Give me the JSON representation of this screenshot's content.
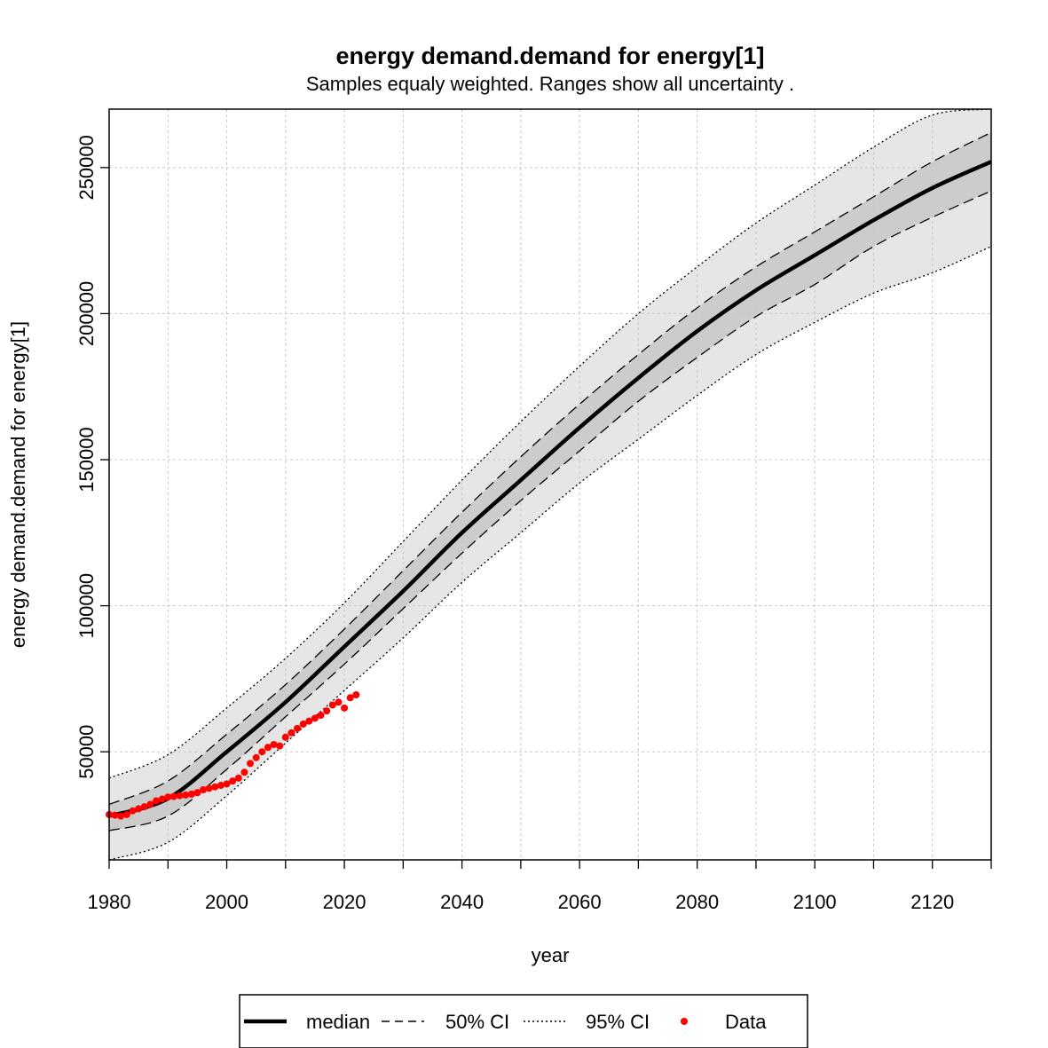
{
  "chart_data": {
    "type": "line",
    "title": "energy demand.demand for energy[1]",
    "subtitle": "Samples equaly weighted. Ranges show  all uncertainty .",
    "xlabel": "year",
    "ylabel": "energy demand.demand for energy[1]",
    "xlim": [
      1980,
      2130
    ],
    "ylim": [
      13000,
      270000
    ],
    "x_ticks": [
      1980,
      2000,
      2020,
      2040,
      2060,
      2080,
      2100,
      2120
    ],
    "x_tick_labels": [
      "1980",
      "2000",
      "2020",
      "2040",
      "2060",
      "2080",
      "2100",
      "2120"
    ],
    "x_minor_ticks": [
      1990,
      2010,
      2030,
      2050,
      2070,
      2090,
      2110,
      2130
    ],
    "y_ticks": [
      50000,
      100000,
      150000,
      200000,
      250000
    ],
    "y_tick_labels": [
      "50000",
      "100000",
      "150000",
      "200000",
      "250000"
    ],
    "grid": true,
    "legend_position": "bottom",
    "legend": [
      {
        "label": "median",
        "style": "solid-thick"
      },
      {
        "label": "50% CI",
        "style": "dashed"
      },
      {
        "label": "95% CI",
        "style": "dotted"
      },
      {
        "label": "Data",
        "style": "point"
      }
    ],
    "colors": {
      "median": "#000000",
      "ci50_fill": "#cccccc",
      "ci95_fill": "#e6e6e6",
      "data": "#ff0000",
      "grid": "#c8c8c8"
    },
    "x": [
      1980,
      1990,
      2000,
      2010,
      2020,
      2030,
      2040,
      2050,
      2060,
      2070,
      2080,
      2090,
      2100,
      2110,
      2120,
      2130
    ],
    "series": [
      {
        "name": "median",
        "values": [
          28000,
          34000,
          50000,
          67000,
          86000,
          105000,
          125000,
          143000,
          161000,
          178000,
          194000,
          208000,
          220000,
          232000,
          243000,
          252000
        ]
      },
      {
        "name": "50% CI",
        "values": [
          32000,
          40000,
          56000,
          73000,
          92000,
          112000,
          132000,
          151000,
          169000,
          186000,
          202000,
          216000,
          228000,
          240000,
          252000,
          262000
        ]
      },
      {
        "name": "50% CI lower",
        "values": [
          23000,
          28000,
          44000,
          62000,
          80000,
          99000,
          118000,
          136000,
          153000,
          170000,
          185000,
          199000,
          210000,
          223000,
          233000,
          242000
        ]
      },
      {
        "name": "95% CI",
        "values": [
          41000,
          49000,
          65000,
          82000,
          101000,
          122000,
          143000,
          163000,
          182000,
          200000,
          216000,
          231000,
          244000,
          257000,
          268000,
          278000
        ]
      },
      {
        "name": "95% CI lower",
        "values": [
          13000,
          19000,
          35000,
          53000,
          71000,
          89000,
          108000,
          125000,
          142000,
          157000,
          172000,
          186000,
          197000,
          207000,
          214000,
          223000
        ]
      }
    ],
    "data_points": {
      "name": "Data",
      "x": [
        1980,
        1981,
        1982,
        1983,
        1984,
        1985,
        1986,
        1987,
        1988,
        1989,
        1990,
        1991,
        1992,
        1993,
        1994,
        1995,
        1996,
        1997,
        1998,
        1999,
        2000,
        2001,
        2002,
        2003,
        2004,
        2005,
        2006,
        2007,
        2008,
        2009,
        2010,
        2011,
        2012,
        2013,
        2014,
        2015,
        2016,
        2017,
        2018,
        2019,
        2020,
        2021,
        2022
      ],
      "y": [
        28500,
        28300,
        28000,
        28500,
        29800,
        30500,
        31200,
        32000,
        33200,
        33800,
        34500,
        34700,
        35000,
        35200,
        35500,
        36000,
        37000,
        37500,
        38000,
        38500,
        39000,
        40000,
        41000,
        43000,
        46000,
        48000,
        50000,
        51500,
        52500,
        52000,
        55000,
        56500,
        58000,
        59500,
        60500,
        61500,
        62500,
        64000,
        66000,
        67000,
        65000,
        68500,
        69500
      ]
    }
  }
}
